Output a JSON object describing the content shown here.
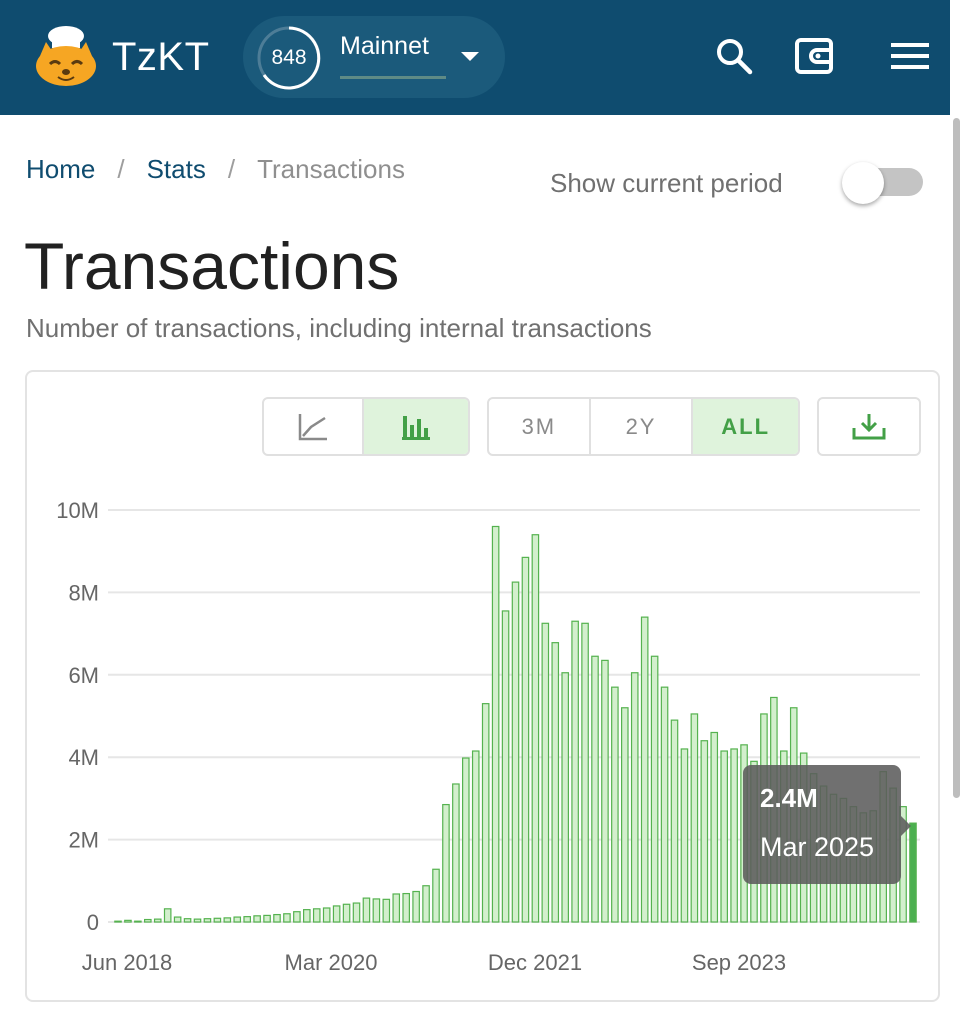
{
  "header": {
    "brand": "TzKT",
    "level": "848",
    "network": "Mainnet",
    "icons": {
      "logo": "chef-cat-logo",
      "search": "search-icon",
      "wallet": "wallet-icon",
      "menu": "hamburger-menu-icon"
    },
    "colors": {
      "bar": "#0f4c6f",
      "accent": "#43a047"
    }
  },
  "breadcrumb": {
    "home": "Home",
    "stats": "Stats",
    "current": "Transactions",
    "separator": "/"
  },
  "period_toggle": {
    "label": "Show current period",
    "on": false
  },
  "page": {
    "title": "Transactions",
    "subtitle": "Number of transactions, including internal transactions"
  },
  "chart_controls": {
    "chart_type": {
      "line_icon": "line-chart-icon",
      "bar_icon": "bar-chart-icon",
      "selected": "bar"
    },
    "range": [
      "3M",
      "2Y",
      "ALL"
    ],
    "range_selected": "ALL",
    "download_icon": "download-icon"
  },
  "chart_data": {
    "type": "bar",
    "color": "#43a047",
    "x_ticks": [
      "Jun 2018",
      "Mar 2020",
      "Dec 2021",
      "Sep 2023"
    ],
    "y_ticks": [
      "0",
      "2M",
      "4M",
      "6M",
      "8M",
      "10M"
    ],
    "ylim": [
      0,
      10000000
    ],
    "grid": true,
    "x": [
      "Jul 2018",
      "Aug 2018",
      "Sep 2018",
      "Oct 2018",
      "Nov 2018",
      "Dec 2018",
      "Jan 2019",
      "Feb 2019",
      "Mar 2019",
      "Apr 2019",
      "May 2019",
      "Jun 2019",
      "Jul 2019",
      "Aug 2019",
      "Sep 2019",
      "Oct 2019",
      "Nov 2019",
      "Dec 2019",
      "Jan 2020",
      "Feb 2020",
      "Mar 2020",
      "Apr 2020",
      "May 2020",
      "Jun 2020",
      "Jul 2020",
      "Aug 2020",
      "Sep 2020",
      "Oct 2020",
      "Nov 2020",
      "Dec 2020",
      "Jan 2021",
      "Feb 2021",
      "Mar 2021",
      "Apr 2021",
      "May 2021",
      "Jun 2021",
      "Jul 2021",
      "Aug 2021",
      "Sep 2021",
      "Oct 2021",
      "Nov 2021",
      "Dec 2021",
      "Jan 2022",
      "Feb 2022",
      "Mar 2022",
      "Apr 2022",
      "May 2022",
      "Jun 2022",
      "Jul 2022",
      "Aug 2022",
      "Sep 2022",
      "Oct 2022",
      "Nov 2022",
      "Dec 2022",
      "Jan 2023",
      "Feb 2023",
      "Mar 2023",
      "Apr 2023",
      "May 2023",
      "Jun 2023",
      "Jul 2023",
      "Aug 2023",
      "Sep 2023",
      "Oct 2023",
      "Nov 2023",
      "Dec 2023",
      "Jan 2024",
      "Feb 2024",
      "Mar 2024",
      "Apr 2024",
      "May 2024",
      "Jun 2024",
      "Jul 2024",
      "Aug 2024",
      "Sep 2024",
      "Oct 2024",
      "Nov 2024",
      "Dec 2024",
      "Jan 2025",
      "Feb 2025",
      "Mar 2025"
    ],
    "values": [
      20000,
      40000,
      20000,
      60000,
      70000,
      320000,
      120000,
      80000,
      70000,
      80000,
      90000,
      100000,
      120000,
      130000,
      150000,
      160000,
      180000,
      200000,
      250000,
      300000,
      320000,
      340000,
      390000,
      430000,
      460000,
      580000,
      560000,
      550000,
      680000,
      690000,
      740000,
      880000,
      1280000,
      2850000,
      3350000,
      3980000,
      4150000,
      5300000,
      9600000,
      7550000,
      8250000,
      8850000,
      9400000,
      7250000,
      6780000,
      6050000,
      7300000,
      7250000,
      6450000,
      6350000,
      5700000,
      5200000,
      6050000,
      7400000,
      6450000,
      5700000,
      4900000,
      4200000,
      5050000,
      4400000,
      4600000,
      4150000,
      4200000,
      4300000,
      3900000,
      5050000,
      5450000,
      4150000,
      5200000,
      4100000,
      3600000,
      3300000,
      3100000,
      3000000,
      2800000,
      2650000,
      2700000,
      3650000,
      3250000,
      2800000,
      2400000
    ],
    "highlight_index": 80,
    "tooltip": {
      "value": "2.4M",
      "date": "Mar 2025"
    }
  }
}
